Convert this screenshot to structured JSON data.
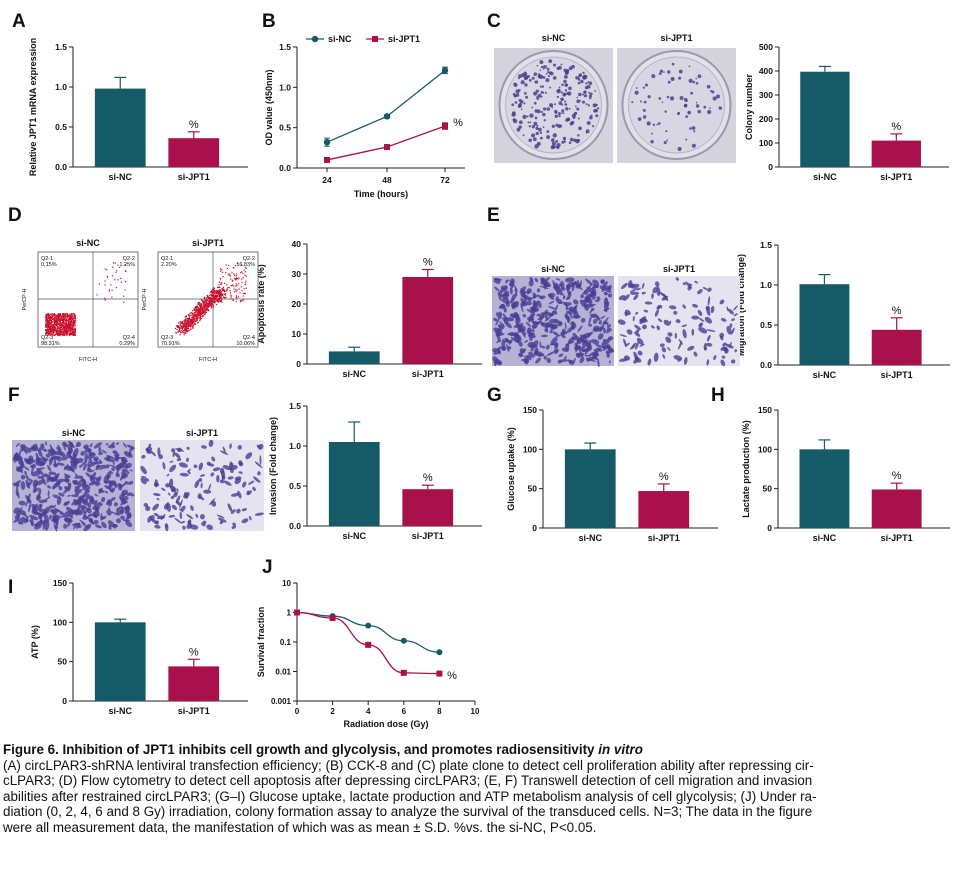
{
  "colors": {
    "si_nc": "#155a66",
    "si_jpt1": "#a8114a",
    "axis": "#222222"
  },
  "panels": {
    "A": {
      "label": "A",
      "ylabel": "Relative JPT1 mRNA expression",
      "sig": "%"
    },
    "B": {
      "label": "B",
      "ylabel": "OD value (450nm)",
      "xlabel": "Time (hours)",
      "sig": "%"
    },
    "C": {
      "label": "C",
      "ylabel": "Colony number",
      "sig": "%",
      "photo_labels": [
        "si-NC",
        "si-JPT1"
      ]
    },
    "D": {
      "label": "D",
      "ylabel": "Apoptosis rate (%)",
      "sig": "%",
      "photo_labels": [
        "si-NC",
        "si-JPT1"
      ],
      "flow_axis_x": "FITC-H",
      "flow_axis_y": "PerCP-H",
      "flow_quadrants": [
        {
          "q1": "Q2-1",
          "q1v": "0.15%",
          "q2": "Q2-2",
          "q2v": "1.25%",
          "q3": "Q2-3",
          "q3v": "98.31%",
          "q4": "Q2-4",
          "q4v": "0.29%"
        },
        {
          "q1": "Q2-1",
          "q1v": "2.20%",
          "q2": "Q2-2",
          "q2v": "16.83%",
          "q3": "Q2-3",
          "q3v": "70.91%",
          "q4": "Q2-4",
          "q4v": "10.06%"
        }
      ]
    },
    "E": {
      "label": "E",
      "ylabel": "Migration (Fold change)",
      "sig": "%",
      "photo_labels": [
        "si-NC",
        "si-JPT1"
      ]
    },
    "F": {
      "label": "F",
      "ylabel": "Invasion (Fold change)",
      "sig": "%",
      "photo_labels": [
        "si-NC",
        "si-JPT1"
      ]
    },
    "G": {
      "label": "G",
      "ylabel": "Glucose uptake (%)",
      "sig": "%"
    },
    "H": {
      "label": "H",
      "ylabel": "Lactate production (%)",
      "sig": "%"
    },
    "I": {
      "label": "I",
      "ylabel": "ATP (%)",
      "sig": "%"
    },
    "J": {
      "label": "J",
      "ylabel": "Survival fraction",
      "xlabel": "Radiation dose (Gy)",
      "sig": "%"
    }
  },
  "chart_data": [
    {
      "panel": "A",
      "type": "bar",
      "categories": [
        "si-NC",
        "si-JPT1"
      ],
      "values": [
        0.98,
        0.36
      ],
      "errors": [
        0.14,
        0.08
      ],
      "ylim": [
        0,
        1.5
      ],
      "yticks": [
        0,
        0.5,
        1.0,
        1.5
      ],
      "ytick_labels": [
        "0.0",
        "0.5",
        "1.0",
        "1.5"
      ],
      "ylabel": "Relative JPT1 mRNA expression"
    },
    {
      "panel": "B",
      "type": "line",
      "x": [
        24,
        48,
        72
      ],
      "series": [
        {
          "name": "si-NC",
          "values": [
            0.32,
            0.64,
            1.21
          ],
          "errors": [
            0.05,
            0.02,
            0.04
          ]
        },
        {
          "name": "si-JPT1",
          "values": [
            0.1,
            0.26,
            0.52
          ],
          "errors": [
            0.02,
            0.02,
            0.04
          ]
        }
      ],
      "ylim": [
        0,
        1.5
      ],
      "yticks": [
        0,
        0.5,
        1.0,
        1.5
      ],
      "ytick_labels": [
        "0.0",
        "0.5",
        "1.0",
        "1.5"
      ],
      "xticks": [
        24,
        48,
        72
      ],
      "xlabel": "Time (hours)",
      "ylabel": "OD value (450nm)",
      "legend": "top-left"
    },
    {
      "panel": "C",
      "type": "bar",
      "categories": [
        "si-NC",
        "si-JPT1"
      ],
      "values": [
        397,
        110
      ],
      "errors": [
        22,
        28
      ],
      "ylim": [
        0,
        500
      ],
      "yticks": [
        0,
        100,
        200,
        300,
        400,
        500
      ],
      "ytick_labels": [
        "0",
        "100",
        "200",
        "300",
        "400",
        "500"
      ],
      "ylabel": "Colony number"
    },
    {
      "panel": "D",
      "type": "bar",
      "categories": [
        "si-NC",
        "si-JPT1"
      ],
      "values": [
        4.2,
        29.0
      ],
      "errors": [
        1.4,
        2.5
      ],
      "ylim": [
        0,
        40
      ],
      "yticks": [
        0,
        10,
        20,
        30,
        40
      ],
      "ytick_labels": [
        "0",
        "10",
        "20",
        "30",
        "40"
      ],
      "ylabel": "Apoptosis rate (%)"
    },
    {
      "panel": "E",
      "type": "bar",
      "categories": [
        "si-NC",
        "si-JPT1"
      ],
      "values": [
        1.01,
        0.44
      ],
      "errors": [
        0.12,
        0.15
      ],
      "ylim": [
        0,
        1.5
      ],
      "yticks": [
        0,
        0.5,
        1.0,
        1.5
      ],
      "ytick_labels": [
        "0.0",
        "0.5",
        "1.0",
        "1.5"
      ],
      "ylabel": "Migration (Fold change)"
    },
    {
      "panel": "F",
      "type": "bar",
      "categories": [
        "si-NC",
        "si-JPT1"
      ],
      "values": [
        1.05,
        0.46
      ],
      "errors": [
        0.25,
        0.05
      ],
      "ylim": [
        0,
        1.5
      ],
      "yticks": [
        0,
        0.5,
        1.0,
        1.5
      ],
      "ytick_labels": [
        "0.0",
        "0.5",
        "1.0",
        "1.5"
      ],
      "ylabel": "Invasion (Fold change)"
    },
    {
      "panel": "G",
      "type": "bar",
      "categories": [
        "si-NC",
        "si-JPT1"
      ],
      "values": [
        100,
        47
      ],
      "errors": [
        8,
        9
      ],
      "ylim": [
        0,
        150
      ],
      "yticks": [
        0,
        50,
        100,
        150
      ],
      "ytick_labels": [
        "0",
        "50",
        "100",
        "150"
      ],
      "ylabel": "Glucose uptake (%)"
    },
    {
      "panel": "H",
      "type": "bar",
      "categories": [
        "si-NC",
        "si-JPT1"
      ],
      "values": [
        100,
        49
      ],
      "errors": [
        12,
        8
      ],
      "ylim": [
        0,
        150
      ],
      "yticks": [
        0,
        50,
        100,
        150
      ],
      "ytick_labels": [
        "0",
        "50",
        "100",
        "150"
      ],
      "ylabel": "Lactate production (%)"
    },
    {
      "panel": "I",
      "type": "bar",
      "categories": [
        "si-NC",
        "si-JPT1"
      ],
      "values": [
        100,
        44
      ],
      "errors": [
        4,
        9
      ],
      "ylim": [
        0,
        150
      ],
      "yticks": [
        0,
        50,
        100,
        150
      ],
      "ytick_labels": [
        "0",
        "50",
        "100",
        "150"
      ],
      "ylabel": "ATP (%)"
    },
    {
      "panel": "J",
      "type": "line",
      "x": [
        0,
        2,
        4,
        6,
        8
      ],
      "series": [
        {
          "name": "si-NC",
          "values": [
            1.0,
            0.75,
            0.36,
            0.11,
            0.045
          ]
        },
        {
          "name": "si-JPT1",
          "values": [
            1.0,
            0.65,
            0.08,
            0.009,
            0.0085
          ]
        }
      ],
      "yscale": "log",
      "ylim": [
        0.001,
        10
      ],
      "yticks": [
        0.001,
        0.01,
        0.1,
        1,
        10
      ],
      "ytick_labels": [
        "0.001",
        "0.01",
        "0.1",
        "1",
        "10"
      ],
      "xlim": [
        0,
        10
      ],
      "xticks": [
        0,
        2,
        4,
        6,
        8,
        10
      ],
      "xlabel": "Radiation dose (Gy)",
      "ylabel": "Survival fraction"
    }
  ],
  "caption": {
    "title": "Figure 6. Inhibition of JPT1 inhibits cell growth and glycolysis, and promotes radiosensitivity",
    "title_italic": "in vitro",
    "lines": [
      "(A) circLPAR3-shRNA lentiviral transfection efficiency; (B) CCK-8 and (C) plate clone to detect cell proliferation ability after repressing cir-",
      "cLPAR3; (D) Flow cytometry to detect cell apoptosis after depressing circLPAR3; (E, F) Transwell detection of cell migration and invasion",
      "abilities after restrained circLPAR3; (G–I) Glucose uptake, lactate production and ATP metabolism analysis of cell glycolysis; (J) Under ra-",
      "diation (0, 2, 4, 6 and 8 Gy) irradiation, colony formation assay to analyze the survival of the transduced cells. N=3; The data in the figure",
      "were all measurement data, the manifestation of which was as mean ± S.D. %vs. the si-NC, P<0.05."
    ]
  }
}
